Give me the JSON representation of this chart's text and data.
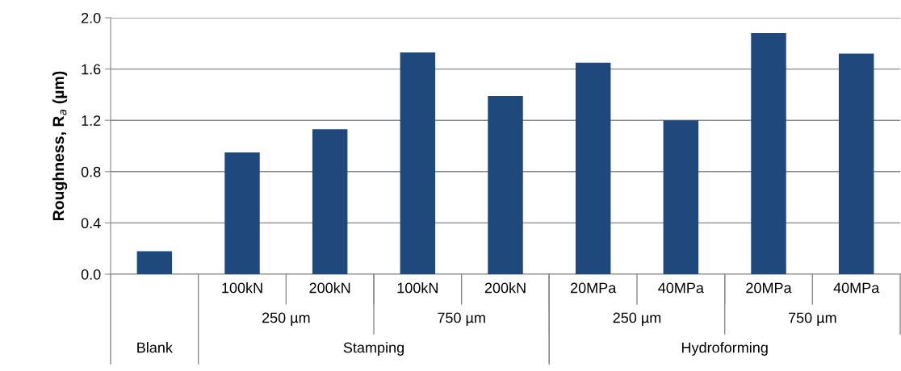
{
  "chart_data": {
    "type": "bar",
    "ylabel": "Roughness, R$_{a}$ (µm)",
    "categories": [
      null,
      "100kN",
      "200kN",
      "100kN",
      "200kN",
      "20MPa",
      "40MPa",
      "20MPa",
      "40MPa"
    ],
    "values": [
      0.18,
      0.95,
      1.13,
      1.73,
      1.39,
      1.65,
      1.2,
      1.88,
      1.72
    ],
    "color": "#1f497d",
    "ylim": [
      0,
      2.0
    ],
    "yticks": [
      {
        "value": 0,
        "label": "0.0"
      },
      {
        "value": 0.4,
        "label": "0.4"
      },
      {
        "value": 0.8,
        "label": "0.8"
      },
      {
        "value": 1.2,
        "label": "1.2"
      },
      {
        "value": 1.6,
        "label": "1.6"
      },
      {
        "value": 2.0,
        "label": "2.0"
      }
    ],
    "grid": "y",
    "annotations": [
      "250 µm",
      "750 µm",
      "250 µm",
      "750 µm",
      "Blank",
      "Stamping",
      "Hydroforming"
    ]
  }
}
